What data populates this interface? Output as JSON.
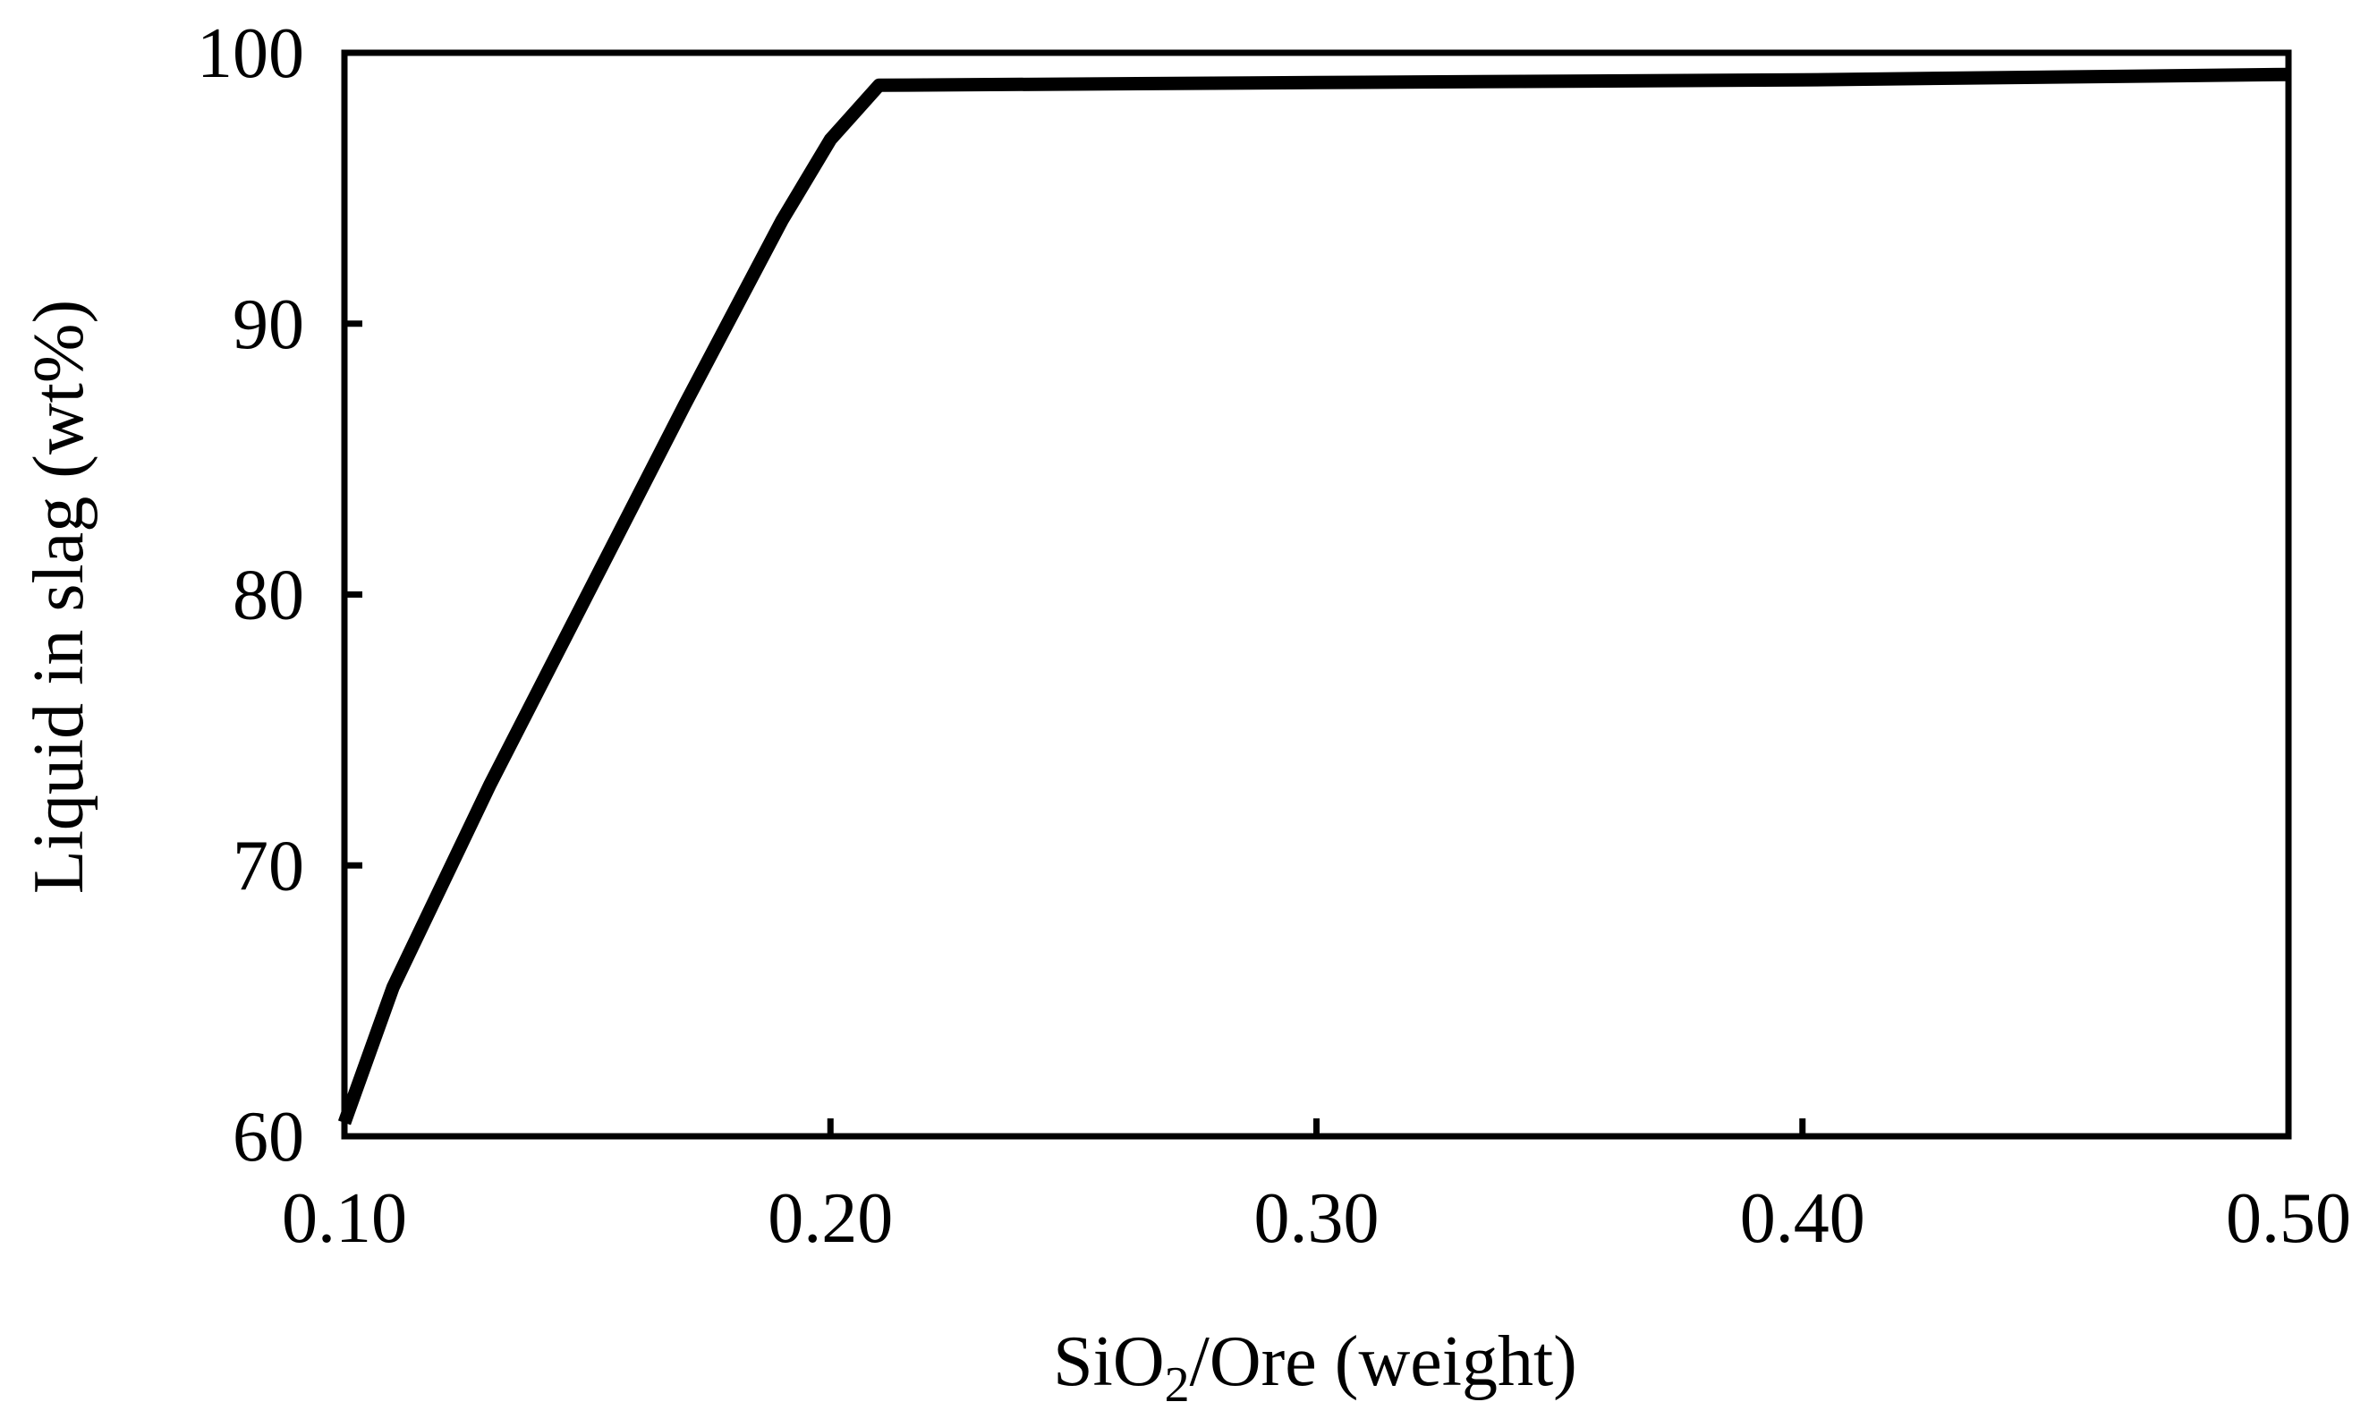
{
  "chart_data": {
    "type": "line",
    "title": "",
    "xlabel": "SiO2/Ore (weight)",
    "xlabel_parts": {
      "pre": "SiO",
      "sub": "2",
      "post": "/Ore (weight)"
    },
    "ylabel": "Liquid in slag (wt%)",
    "xlim": [
      0.1,
      0.5
    ],
    "ylim": [
      60,
      100
    ],
    "x_ticks": [
      "0.10",
      "0.20",
      "0.30",
      "0.40",
      "0.50"
    ],
    "y_ticks": [
      "60",
      "70",
      "80",
      "90",
      "100"
    ],
    "grid": false,
    "legend": null,
    "series": [
      {
        "name": "Liquid in slag",
        "color": "#000000",
        "x": [
          0.1,
          0.11,
          0.13,
          0.15,
          0.17,
          0.19,
          0.2,
          0.21,
          0.3,
          0.4,
          0.5
        ],
        "y": [
          60.5,
          65.5,
          73.0,
          80.0,
          87.0,
          93.8,
          96.8,
          98.8,
          98.9,
          99.0,
          99.2
        ]
      }
    ]
  }
}
